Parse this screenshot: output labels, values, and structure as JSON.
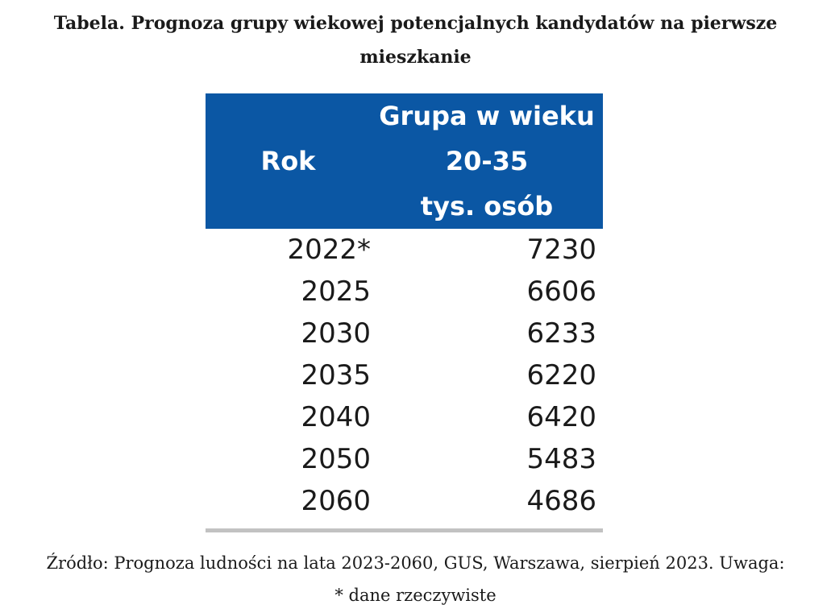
{
  "title": "Tabela. Prognoza grupy wiekowej potencjalnych kandydatów na pierwsze mieszkanie",
  "table": {
    "header_year": "Rok",
    "header_value_lines": [
      "Grupa w wieku",
      "20-35",
      "tys. osób"
    ],
    "header_fill": "#0b57a4",
    "rows": [
      {
        "year": "2022*",
        "value": "7230"
      },
      {
        "year": "2025",
        "value": "6606"
      },
      {
        "year": "2030",
        "value": "6233"
      },
      {
        "year": "2035",
        "value": "6220"
      },
      {
        "year": "2040",
        "value": "6420"
      },
      {
        "year": "2050",
        "value": "5483"
      },
      {
        "year": "2060",
        "value": "4686"
      }
    ]
  },
  "source_line1": "Źródło: Prognoza ludności na lata 2023-2060, GUS, Warszawa, sierpień 2023. Uwaga:",
  "source_line2": "* dane rzeczywiste"
}
